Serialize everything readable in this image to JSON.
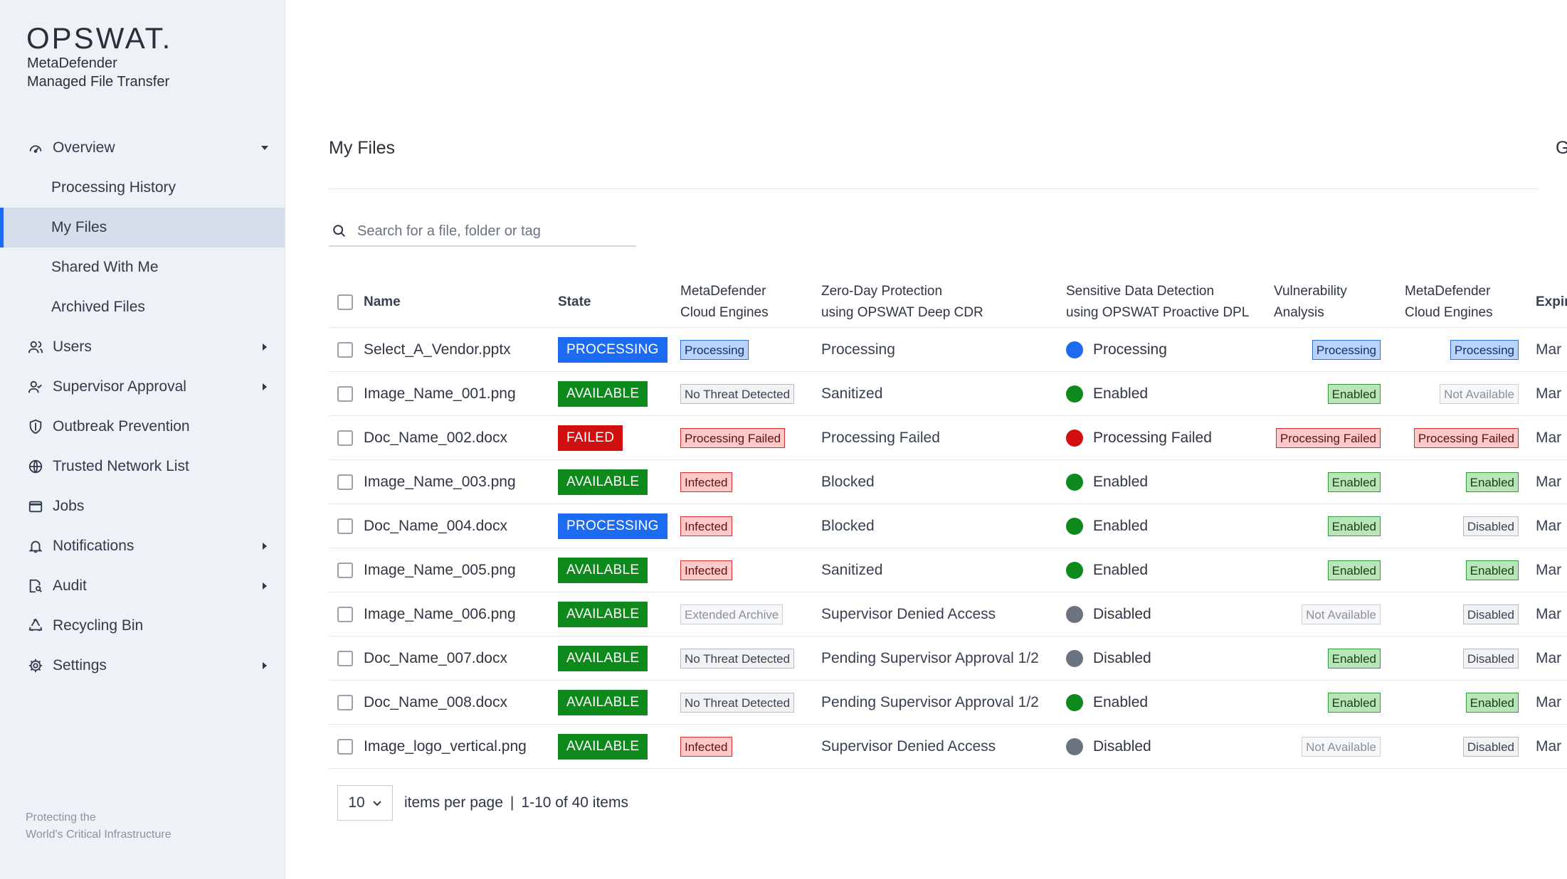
{
  "app": {
    "logo": "OPSWAT.",
    "product_line1": "MetaDefender",
    "product_line2": "Managed File Transfer",
    "footer_line1": "Protecting the",
    "footer_line2": "World's Critical Infrastructure"
  },
  "sidebar": {
    "items": [
      {
        "label": "Overview",
        "icon": "gauge-icon",
        "arrow": "down"
      },
      {
        "label": "Processing History",
        "sub": true
      },
      {
        "label": "My Files",
        "sub": true,
        "active": true
      },
      {
        "label": "Shared With Me",
        "sub": true
      },
      {
        "label": "Archived Files",
        "sub": true
      },
      {
        "label": "Users",
        "icon": "users-icon",
        "arrow": "right"
      },
      {
        "label": "Supervisor Approval",
        "icon": "supervisor-icon",
        "arrow": "right"
      },
      {
        "label": "Outbreak Prevention",
        "icon": "shield-icon"
      },
      {
        "label": "Trusted Network List",
        "icon": "globe-icon"
      },
      {
        "label": "Jobs",
        "icon": "jobs-icon"
      },
      {
        "label": "Notifications",
        "icon": "bell-icon",
        "arrow": "right"
      },
      {
        "label": "Audit",
        "icon": "audit-icon",
        "arrow": "right"
      },
      {
        "label": "Recycling Bin",
        "icon": "recycle-icon"
      },
      {
        "label": "Settings",
        "icon": "gear-icon",
        "arrow": "right"
      }
    ]
  },
  "main": {
    "title": "My Files",
    "title_right_cut": "G",
    "search_placeholder": "Search for a file, folder or tag"
  },
  "table": {
    "headers": {
      "name": "Name",
      "state": "State",
      "md1_line1": "MetaDefender",
      "md1_line2": "Cloud Engines",
      "cdr_line1": "Zero-Day Protection",
      "cdr_line2": "using OPSWAT Deep CDR",
      "dpl_line1": "Sensitive Data Detection",
      "dpl_line2": "using OPSWAT Proactive DPL",
      "vuln_line1": "Vulnerability",
      "vuln_line2": "Analysis",
      "md2_line1": "MetaDefender",
      "md2_line2": "Cloud Engines",
      "exp": "Expir"
    },
    "rows": [
      {
        "name": "Select_A_Vendor.pptx",
        "state": "PROCESSING",
        "state_style": "processing",
        "md1": "Processing",
        "md1_style": "blue",
        "cdr": "Processing",
        "dpl": "Processing",
        "dpl_dot": "blue",
        "vuln": "Processing",
        "vuln_style": "blue",
        "md2": "Processing",
        "md2_style": "blue",
        "exp": "Mar"
      },
      {
        "name": "Image_Name_001.png",
        "state": "AVAILABLE",
        "state_style": "available",
        "md1": "No Threat Detected",
        "md1_style": "gray",
        "cdr": "Sanitized",
        "dpl": "Enabled",
        "dpl_dot": "green",
        "vuln": "Enabled",
        "vuln_style": "green",
        "md2": "Not Available",
        "md2_style": "lightgray",
        "exp": "Mar"
      },
      {
        "name": "Doc_Name_002.docx",
        "state": "FAILED",
        "state_style": "failed",
        "md1": "Processing Failed",
        "md1_style": "red",
        "cdr": "Processing Failed",
        "dpl": "Processing Failed",
        "dpl_dot": "red",
        "vuln": "Processing Failed",
        "vuln_style": "red",
        "md2": "Processing Failed",
        "md2_style": "red",
        "exp": "Mar"
      },
      {
        "name": "Image_Name_003.png",
        "state": "AVAILABLE",
        "state_style": "available",
        "md1": "Infected",
        "md1_style": "red",
        "cdr": "Blocked",
        "dpl": "Enabled",
        "dpl_dot": "green",
        "vuln": "Enabled",
        "vuln_style": "green",
        "md2": "Enabled",
        "md2_style": "green",
        "exp": "Mar"
      },
      {
        "name": "Doc_Name_004.docx",
        "state": "PROCESSING",
        "state_style": "processing",
        "md1": "Infected",
        "md1_style": "red",
        "cdr": "Blocked",
        "dpl": "Enabled",
        "dpl_dot": "green",
        "vuln": "Enabled",
        "vuln_style": "green",
        "md2": "Disabled",
        "md2_style": "gray",
        "exp": "Mar"
      },
      {
        "name": "Image_Name_005.png",
        "state": "AVAILABLE",
        "state_style": "available",
        "md1": "Infected",
        "md1_style": "red",
        "cdr": "Sanitized",
        "dpl": "Enabled",
        "dpl_dot": "green",
        "vuln": "Enabled",
        "vuln_style": "green",
        "md2": "Enabled",
        "md2_style": "green",
        "exp": "Mar"
      },
      {
        "name": "Image_Name_006.png",
        "state": "AVAILABLE",
        "state_style": "available",
        "md1": "Extended Archive",
        "md1_style": "lightgray",
        "cdr": "Supervisor Denied Access",
        "dpl": "Disabled",
        "dpl_dot": "gray",
        "vuln": "Not Available",
        "vuln_style": "lightgray",
        "md2": "Disabled",
        "md2_style": "gray",
        "exp": "Mar"
      },
      {
        "name": "Doc_Name_007.docx",
        "state": "AVAILABLE",
        "state_style": "available",
        "md1": "No Threat Detected",
        "md1_style": "gray",
        "cdr": "Pending Supervisor Approval 1/2",
        "dpl": "Disabled",
        "dpl_dot": "gray",
        "vuln": "Enabled",
        "vuln_style": "green",
        "md2": "Disabled",
        "md2_style": "gray",
        "exp": "Mar"
      },
      {
        "name": "Doc_Name_008.docx",
        "state": "AVAILABLE",
        "state_style": "available",
        "md1": "No Threat Detected",
        "md1_style": "gray",
        "cdr": "Pending Supervisor Approval 1/2",
        "dpl": "Enabled",
        "dpl_dot": "green",
        "vuln": "Enabled",
        "vuln_style": "green",
        "md2": "Enabled",
        "md2_style": "green",
        "exp": "Mar"
      },
      {
        "name": "Image_logo_vertical.png",
        "state": "AVAILABLE",
        "state_style": "available",
        "md1": "Infected",
        "md1_style": "red",
        "cdr": "Supervisor Denied Access",
        "dpl": "Disabled",
        "dpl_dot": "gray",
        "vuln": "Not Available",
        "vuln_style": "lightgray",
        "md2": "Disabled",
        "md2_style": "gray",
        "exp": "Mar"
      }
    ]
  },
  "pagination": {
    "per_page": "10",
    "per_page_label": "items per page",
    "separator": "|",
    "range": "1-10 of 40 items"
  },
  "colors": {
    "accent": "#1d6bf3",
    "available": "#0e8a1c",
    "failed": "#d10f0f",
    "sidebar_bg": "#eef1f6"
  }
}
